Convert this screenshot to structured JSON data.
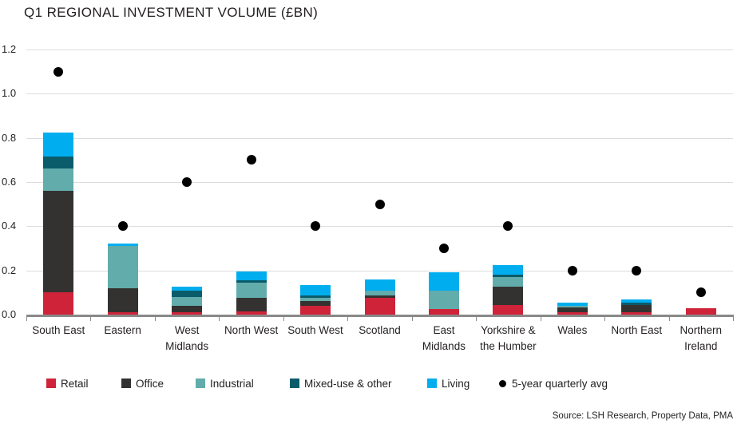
{
  "title": "Q1 REGIONAL INVESTMENT VOLUME (£BN)",
  "source": "Source: LSH Research, Property Data, PMA",
  "chart_data": {
    "type": "bar",
    "stacked": true,
    "title": "Q1 REGIONAL INVESTMENT VOLUME (£BN)",
    "xlabel": "",
    "ylabel": "",
    "ylim": [
      0,
      1.2
    ],
    "y_ticks": [
      0.0,
      0.2,
      0.4,
      0.6,
      0.8,
      1.0,
      1.2
    ],
    "grid": true,
    "legend_position": "bottom",
    "categories": [
      "South East",
      "Eastern",
      "West Midlands",
      "North West",
      "South West",
      "Scotland",
      "East Midlands",
      "Yorkshire & the Humber",
      "Wales",
      "North East",
      "Northern Ireland"
    ],
    "series": [
      {
        "name": "Retail",
        "color": "#ce2339",
        "values": [
          0.1,
          0.01,
          0.01,
          0.015,
          0.04,
          0.075,
          0.025,
          0.045,
          0.012,
          0.012,
          0.028
        ]
      },
      {
        "name": "Office",
        "color": "#343230",
        "values": [
          0.46,
          0.11,
          0.03,
          0.06,
          0.02,
          0.012,
          0.0,
          0.08,
          0.02,
          0.033,
          0.0
        ]
      },
      {
        "name": "Industrial",
        "color": "#62acac",
        "values": [
          0.1,
          0.19,
          0.04,
          0.07,
          0.015,
          0.022,
          0.085,
          0.045,
          0.008,
          0.0,
          0.0
        ]
      },
      {
        "name": "Mixed-use & other",
        "color": "#0b5c6b",
        "values": [
          0.055,
          0.0,
          0.03,
          0.01,
          0.01,
          0.0,
          0.0,
          0.01,
          0.0,
          0.011,
          0.0
        ]
      },
      {
        "name": "Living",
        "color": "#00aeef",
        "values": [
          0.11,
          0.012,
          0.015,
          0.04,
          0.05,
          0.05,
          0.08,
          0.045,
          0.015,
          0.013,
          0.0
        ]
      }
    ],
    "point_series": {
      "name": "5-year quarterly avg",
      "color": "#000000",
      "values": [
        1.1,
        0.4,
        0.6,
        0.7,
        0.4,
        0.5,
        0.3,
        0.4,
        0.2,
        0.2,
        0.1
      ]
    }
  }
}
